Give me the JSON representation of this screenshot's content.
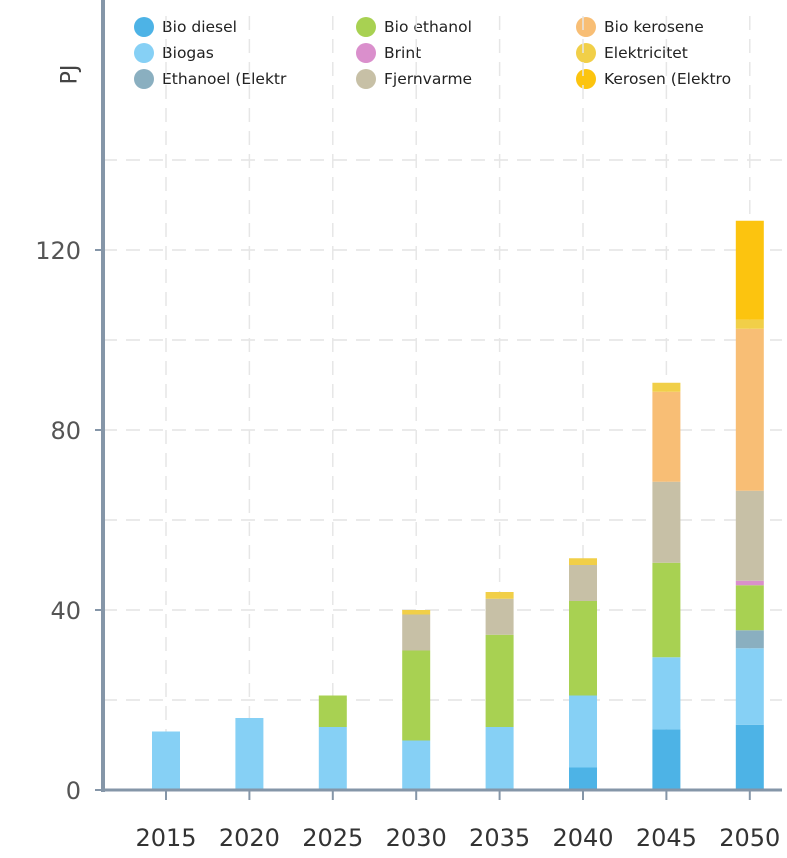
{
  "chart_data": {
    "type": "bar",
    "stacked": true,
    "ylabel": "PJ",
    "ylim": [
      0,
      150
    ],
    "yticks": [
      0,
      40,
      80,
      120
    ],
    "grid": true,
    "legend_position": "top",
    "categories": [
      "2015",
      "2020",
      "2025",
      "2030",
      "2035",
      "2040",
      "2045",
      "2050"
    ],
    "series": [
      {
        "name": "Bio diesel",
        "color": "#4db3e6",
        "values": [
          0,
          0,
          0,
          0,
          0,
          5,
          13.5,
          14.5
        ]
      },
      {
        "name": "Biogas",
        "color": "#86d0f5",
        "values": [
          13,
          16,
          14,
          11,
          14,
          16,
          16,
          17
        ]
      },
      {
        "name": "Ethanoel (Elektr",
        "color": "#8aafc0",
        "values": [
          0,
          0,
          0,
          0,
          0,
          0,
          0,
          4
        ]
      },
      {
        "name": "Bio ethanol",
        "color": "#a8d152",
        "values": [
          0,
          0,
          7,
          20,
          20.5,
          21,
          21,
          10
        ]
      },
      {
        "name": "Brint",
        "color": "#da8fcc",
        "values": [
          0,
          0,
          0,
          0,
          0,
          0,
          0,
          1
        ]
      },
      {
        "name": "Fjernvarme",
        "color": "#c7c0a6",
        "values": [
          0,
          0,
          0,
          8,
          8,
          8,
          18,
          20
        ]
      },
      {
        "name": "Bio kerosene",
        "color": "#f8be75",
        "values": [
          0,
          0,
          0,
          0,
          0,
          0,
          20,
          36
        ]
      },
      {
        "name": "Elektricitet",
        "color": "#f1cf48",
        "values": [
          0,
          0,
          0,
          1,
          1.5,
          1.5,
          2,
          2
        ]
      },
      {
        "name": "Kerosen (Elektro",
        "color": "#fcc40f",
        "values": [
          0,
          0,
          0,
          0,
          0,
          0,
          0,
          22
        ]
      }
    ],
    "legend_order": [
      "Bio diesel",
      "Bio ethanol",
      "Bio kerosene",
      "Biogas",
      "Brint",
      "Elektricitet",
      "Ethanoel (Elektr",
      "Fjernvarme",
      "Kerosen (Elektro"
    ]
  }
}
